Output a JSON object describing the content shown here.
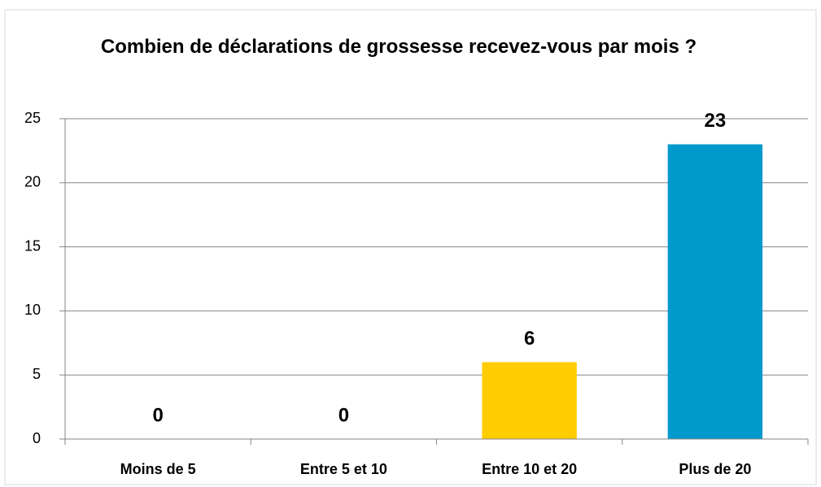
{
  "chart_data": {
    "type": "bar",
    "title": "Combien de déclarations de grossesse recevez-vous par mois ?",
    "categories": [
      "Moins de 5",
      "Entre 5 et 10",
      "Entre 10 et 20",
      "Plus de 20"
    ],
    "values": [
      0,
      0,
      6,
      23
    ],
    "colors": [
      "#4f81bd",
      "#c0504d",
      "#ffcc00",
      "#0099cc"
    ],
    "ylim": [
      0,
      25
    ],
    "yticks": [
      0,
      5,
      10,
      15,
      20,
      25
    ],
    "grid": true
  }
}
